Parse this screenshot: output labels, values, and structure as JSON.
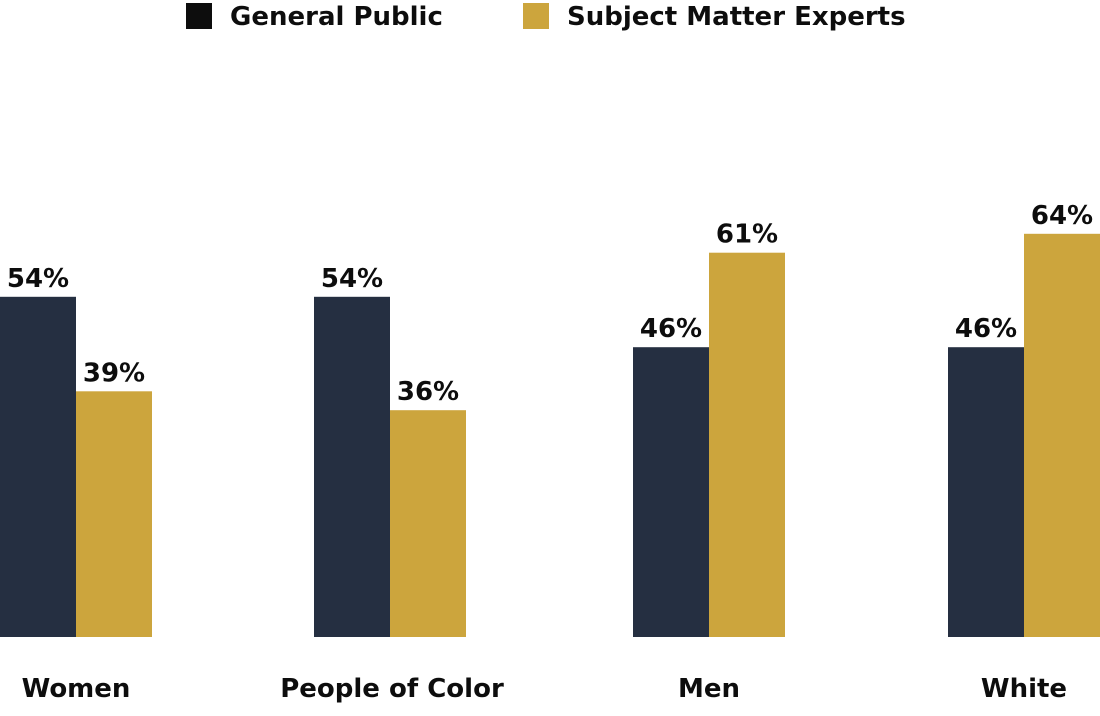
{
  "chart_data": {
    "type": "bar",
    "categories": [
      "Women",
      "People of Color",
      "Men",
      "White"
    ],
    "series": [
      {
        "name": "General Public",
        "values": [
          54,
          54,
          46,
          46
        ],
        "labels": [
          "54%",
          "54%",
          "46%",
          "46%"
        ],
        "color": "#252f41"
      },
      {
        "name": "Subject Matter Experts",
        "values": [
          39,
          36,
          61,
          64
        ],
        "labels": [
          "39%",
          "36%",
          "61%",
          "64%"
        ],
        "color": "#cca53d"
      }
    ],
    "legend": {
      "position": "top-center",
      "swatch_colors": [
        "#0d0d0d",
        "#cca53d"
      ]
    },
    "title": "",
    "xlabel": "",
    "ylabel": "",
    "grid": false,
    "ylim": [
      0,
      100
    ]
  }
}
